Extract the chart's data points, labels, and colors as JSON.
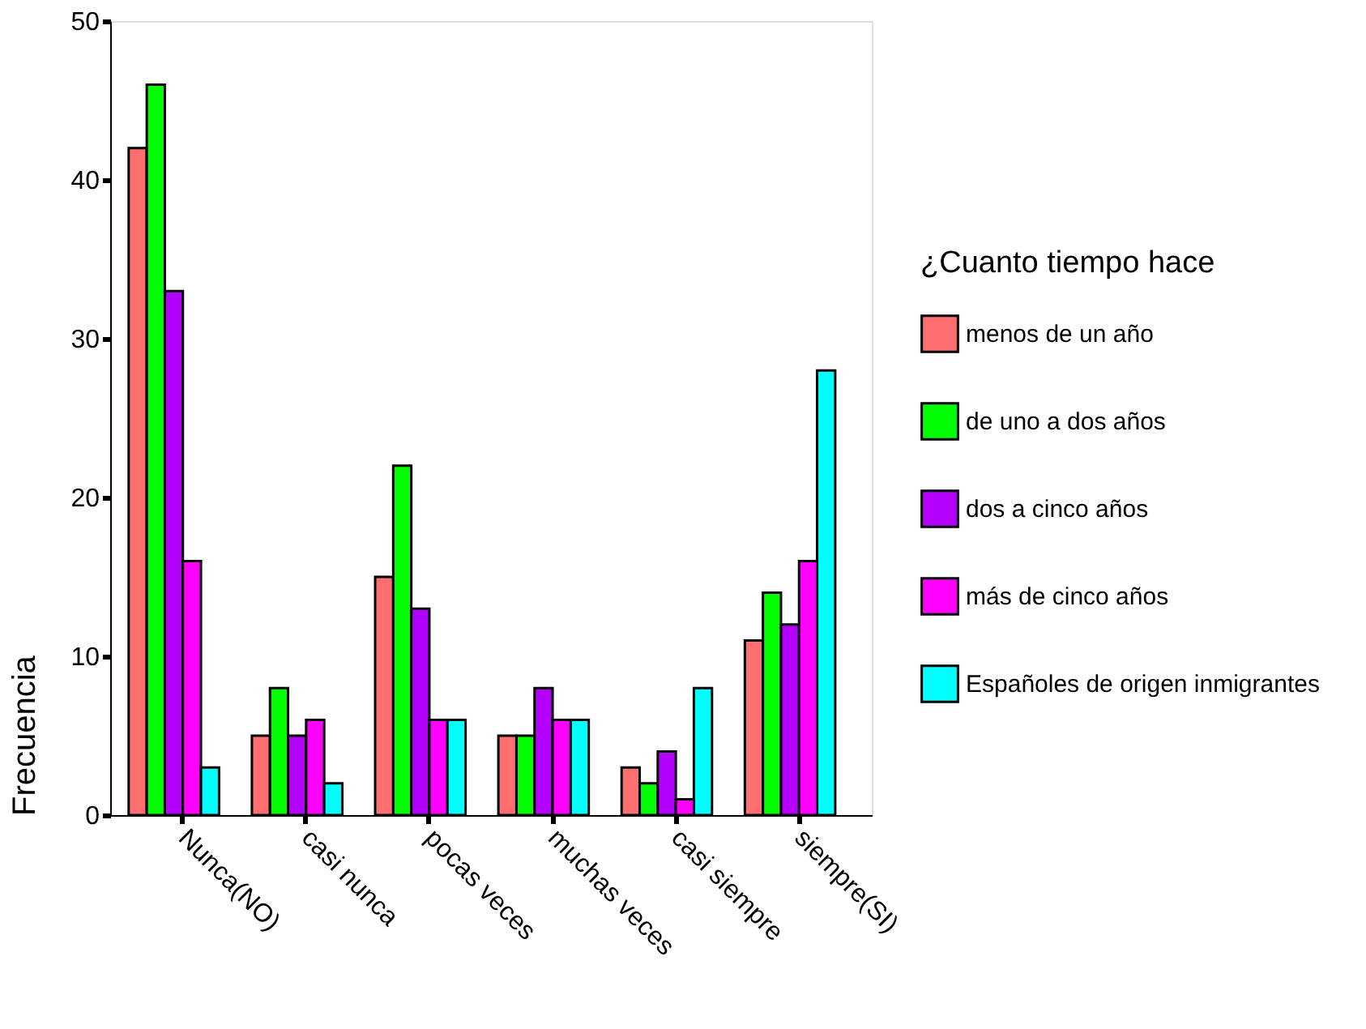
{
  "chart_data": {
    "type": "bar",
    "categories": [
      "Nunca(NO)",
      "casi nunca",
      "pocas veces",
      "muchas veces",
      "casi siempre",
      "siempre(SI)"
    ],
    "ylabel": "Frecuencia",
    "legend_title": "¿Cuanto tiempo hace",
    "ylim": [
      0,
      50
    ],
    "yticks": [
      0,
      10,
      20,
      30,
      40,
      50
    ],
    "grid": false,
    "legend": "right",
    "series": [
      {
        "name": "menos de un año",
        "color": "#ff6f6f",
        "values": [
          42,
          5,
          15,
          5,
          3,
          11
        ]
      },
      {
        "name": "de uno a dos años",
        "color": "#00ff00",
        "values": [
          46,
          8,
          22,
          5,
          2,
          14
        ]
      },
      {
        "name": "dos a cinco años",
        "color": "#b300ff",
        "values": [
          33,
          5,
          13,
          8,
          4,
          12
        ]
      },
      {
        "name": "más de cinco años",
        "color": "#ff00ff",
        "values": [
          16,
          6,
          6,
          6,
          1,
          16
        ]
      },
      {
        "name": "Españoles de origen inmigrantes",
        "color": "#00ffff",
        "values": [
          3,
          2,
          6,
          6,
          8,
          28
        ]
      }
    ]
  }
}
